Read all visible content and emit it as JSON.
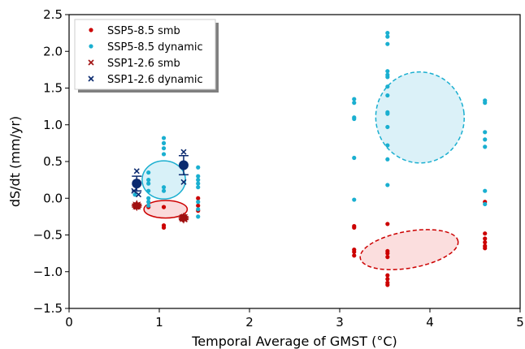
{
  "chart_data": {
    "type": "scatter",
    "xlabel": "Temporal Average of GMST (°C)",
    "ylabel": "dS/dt (mm/yr)",
    "xlim": [
      0,
      5
    ],
    "ylim": [
      -1.5,
      2.5
    ],
    "xticks": [
      0,
      1,
      2,
      3,
      4,
      5
    ],
    "yticks": [
      -1.5,
      -1.0,
      -0.5,
      0.0,
      0.5,
      1.0,
      1.5,
      2.0,
      2.5
    ],
    "xtick_labels": [
      "0",
      "1",
      "2",
      "3",
      "4",
      "5"
    ],
    "ytick_labels": [
      "−1.5",
      "−1.0",
      "−0.5",
      "0.0",
      "0.5",
      "1.0",
      "1.5",
      "2.0",
      "2.5"
    ],
    "grid": false,
    "legend_position": "top-left",
    "colors": {
      "ssp585_smb": "#cc0000",
      "ssp585_dynamic": "#1aafd0",
      "ssp126_smb": "#a01010",
      "ssp126_dynamic": "#0b2a6f"
    },
    "series": [
      {
        "name": "SSP5-8.5 smb",
        "marker": "dot",
        "color_key": "ssp585_smb",
        "points": [
          [
            0.73,
            -0.1
          ],
          [
            0.77,
            -0.12
          ],
          [
            0.88,
            -0.12
          ],
          [
            1.05,
            -0.12
          ],
          [
            1.05,
            -0.37
          ],
          [
            1.05,
            -0.4
          ],
          [
            1.43,
            0.0
          ],
          [
            1.43,
            -0.1
          ],
          [
            1.43,
            -0.17
          ],
          [
            3.16,
            -0.38
          ],
          [
            3.16,
            -0.4
          ],
          [
            3.16,
            -0.7
          ],
          [
            3.16,
            -0.73
          ],
          [
            3.16,
            -0.78
          ],
          [
            3.53,
            -0.35
          ],
          [
            3.53,
            -0.72
          ],
          [
            3.53,
            -0.75
          ],
          [
            3.53,
            -0.8
          ],
          [
            3.53,
            -1.05
          ],
          [
            3.53,
            -1.1
          ],
          [
            3.53,
            -1.15
          ],
          [
            3.53,
            -1.18
          ],
          [
            4.61,
            -0.05
          ],
          [
            4.61,
            -0.48
          ],
          [
            4.61,
            -0.55
          ],
          [
            4.61,
            -0.6
          ],
          [
            4.61,
            -0.65
          ],
          [
            4.61,
            -0.68
          ]
        ]
      },
      {
        "name": "SSP5-8.5 dynamic",
        "marker": "dot",
        "color_key": "ssp585_dynamic",
        "points": [
          [
            0.73,
            0.22
          ],
          [
            0.73,
            0.05
          ],
          [
            0.88,
            0.35
          ],
          [
            0.88,
            0.25
          ],
          [
            0.88,
            0.2
          ],
          [
            0.88,
            0.1
          ],
          [
            0.88,
            0.0
          ],
          [
            0.88,
            -0.05
          ],
          [
            0.88,
            -0.1
          ],
          [
            1.05,
            0.82
          ],
          [
            1.05,
            0.75
          ],
          [
            1.05,
            0.68
          ],
          [
            1.05,
            0.6
          ],
          [
            1.05,
            0.15
          ],
          [
            1.05,
            0.1
          ],
          [
            1.43,
            0.42
          ],
          [
            1.43,
            0.3
          ],
          [
            1.43,
            0.25
          ],
          [
            1.43,
            0.2
          ],
          [
            1.43,
            0.15
          ],
          [
            1.43,
            -0.05
          ],
          [
            1.43,
            -0.15
          ],
          [
            1.43,
            -0.25
          ],
          [
            3.16,
            1.35
          ],
          [
            3.16,
            1.3
          ],
          [
            3.16,
            1.1
          ],
          [
            3.16,
            1.08
          ],
          [
            3.16,
            0.55
          ],
          [
            3.16,
            -0.02
          ],
          [
            3.53,
            2.25
          ],
          [
            3.53,
            2.2
          ],
          [
            3.53,
            2.1
          ],
          [
            3.53,
            1.73
          ],
          [
            3.53,
            1.68
          ],
          [
            3.53,
            1.65
          ],
          [
            3.53,
            1.52
          ],
          [
            3.53,
            1.4
          ],
          [
            3.53,
            1.17
          ],
          [
            3.53,
            1.15
          ],
          [
            3.53,
            0.97
          ],
          [
            3.53,
            0.72
          ],
          [
            3.53,
            0.53
          ],
          [
            3.53,
            0.18
          ],
          [
            4.61,
            1.33
          ],
          [
            4.61,
            1.3
          ],
          [
            4.61,
            0.9
          ],
          [
            4.61,
            0.8
          ],
          [
            4.61,
            0.7
          ],
          [
            4.61,
            0.1
          ],
          [
            4.61,
            -0.08
          ]
        ]
      },
      {
        "name": "SSP1-2.6 smb",
        "marker": "x",
        "color_key": "ssp126_smb",
        "points": [
          [
            0.74,
            -0.1
          ],
          [
            0.76,
            -0.09
          ],
          [
            0.75,
            -0.12
          ],
          [
            1.25,
            -0.27
          ],
          [
            1.27,
            -0.25
          ],
          [
            1.28,
            -0.29
          ]
        ]
      },
      {
        "name": "SSP1-2.6 dynamic",
        "marker": "x",
        "color_key": "ssp126_dynamic",
        "points": [
          [
            0.75,
            0.37
          ],
          [
            0.77,
            0.05
          ],
          [
            0.72,
            0.1
          ],
          [
            1.27,
            0.63
          ],
          [
            1.27,
            0.22
          ],
          [
            1.28,
            0.45
          ]
        ]
      }
    ],
    "means": [
      {
        "series": "SSP1-2.6 dynamic",
        "x": 0.75,
        "y": 0.2,
        "err": 0.1,
        "color_key": "ssp126_dynamic",
        "shape": "circle"
      },
      {
        "series": "SSP1-2.6 dynamic",
        "x": 1.27,
        "y": 0.45,
        "err": 0.13,
        "color_key": "ssp126_dynamic",
        "shape": "circle"
      },
      {
        "series": "SSP1-2.6 smb",
        "x": 0.75,
        "y": -0.1,
        "err": 0.02,
        "color_key": "ssp126_smb",
        "shape": "star"
      },
      {
        "series": "SSP1-2.6 smb",
        "x": 1.27,
        "y": -0.27,
        "err": 0.02,
        "color_key": "ssp126_smb",
        "shape": "star"
      }
    ],
    "ellipses": [
      {
        "name": "ssp126-dynamic-spread",
        "cx": 1.05,
        "cy": 0.25,
        "rx": 0.24,
        "ry": 0.26,
        "rotate": 0,
        "dashed": false,
        "stroke_key": "ssp585_dynamic",
        "fill": "#d8f1f8"
      },
      {
        "name": "ssp126-smb-spread",
        "cx": 1.07,
        "cy": -0.15,
        "rx": 0.24,
        "ry": 0.12,
        "rotate": 0,
        "dashed": false,
        "stroke_key": "ssp585_smb",
        "fill": "#fadadb"
      },
      {
        "name": "ssp585-dynamic-spread",
        "cx": 3.89,
        "cy": 1.1,
        "rx": 0.49,
        "ry": 0.62,
        "rotate": -8,
        "dashed": true,
        "stroke_key": "ssp585_dynamic",
        "fill": "#dbf1f8"
      },
      {
        "name": "ssp585-smb-spread",
        "cx": 3.77,
        "cy": -0.7,
        "rx": 0.55,
        "ry": 0.25,
        "rotate": -10,
        "dashed": true,
        "stroke_key": "ssp585_smb",
        "fill": "#fbdede"
      }
    ]
  }
}
